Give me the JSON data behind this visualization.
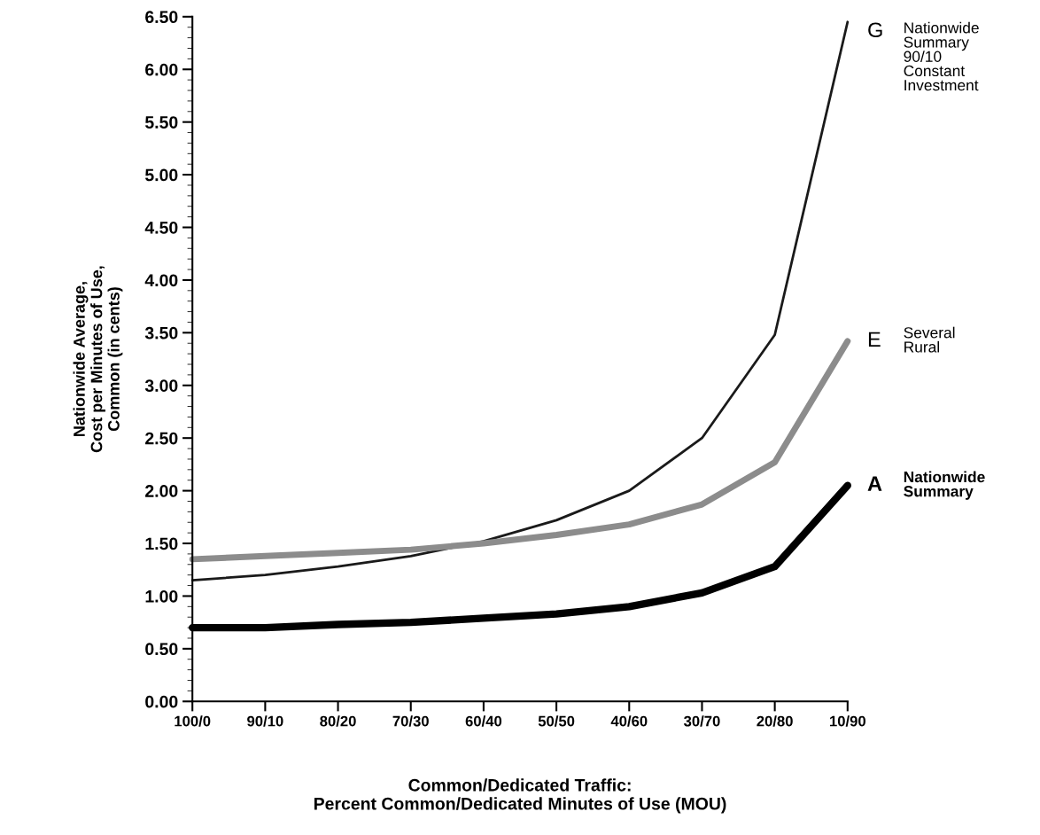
{
  "chart_data": {
    "type": "line",
    "xlabel": "Common/Dedicated Traffic:\nPercent Common/Dedicated Minutes of Use (MOU)",
    "ylabel": "Nationwide Average,\nCost per Minutes of Use,\nCommon (in cents)",
    "categories": [
      "100/0",
      "90/10",
      "80/20",
      "70/30",
      "60/40",
      "50/50",
      "40/60",
      "30/70",
      "20/80",
      "10/90"
    ],
    "series": [
      {
        "name": "G Nationwide\nSummary\n90/10\nConstant\nInvestment",
        "color": "#1a1a1a",
        "values": [
          1.15,
          1.2,
          1.28,
          1.38,
          1.52,
          1.72,
          2.0,
          2.5,
          3.48,
          6.45
        ]
      },
      {
        "name": "E Several\nRural",
        "color": "#8c8c8c",
        "values": [
          1.35,
          1.38,
          1.41,
          1.44,
          1.5,
          1.58,
          1.68,
          1.87,
          2.27,
          3.42
        ]
      },
      {
        "name": "A Nationwide\nSummary",
        "color": "#000000",
        "values": [
          0.7,
          0.7,
          0.73,
          0.75,
          0.79,
          0.83,
          0.9,
          1.03,
          1.28,
          2.05
        ]
      }
    ],
    "ylim": [
      0,
      6.5
    ],
    "yticks": [
      {
        "value": 0,
        "label": "0.00"
      },
      {
        "value": 0.5,
        "label": "0.50"
      },
      {
        "value": 1,
        "label": "1.00"
      },
      {
        "value": 1.5,
        "label": "1.50"
      },
      {
        "value": 2,
        "label": "2.00"
      },
      {
        "value": 2.5,
        "label": "2.50"
      },
      {
        "value": 3,
        "label": "3.00"
      },
      {
        "value": 3.5,
        "label": "3.50"
      },
      {
        "value": 4,
        "label": "4.00"
      },
      {
        "value": 4.5,
        "label": "4.50"
      },
      {
        "value": 5,
        "label": "5.00"
      },
      {
        "value": 5.5,
        "label": "5.50"
      },
      {
        "value": 6,
        "label": "6.00"
      },
      {
        "value": 6.5,
        "label": "6.50"
      }
    ],
    "grid": false,
    "legend": false,
    "marker": "none",
    "line_style": "solid"
  }
}
